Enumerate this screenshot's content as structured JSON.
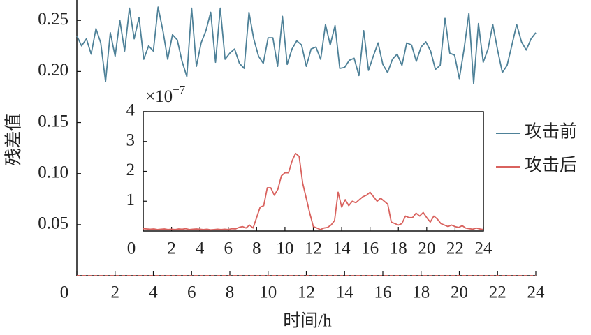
{
  "chart_data": [
    {
      "type": "line",
      "ylabel": "残差值",
      "xlabel": "时间/h",
      "legend": "right",
      "xlim": [
        0,
        24
      ],
      "ylim": [
        0,
        0.27
      ],
      "xticks": [
        0,
        2,
        4,
        6,
        8,
        10,
        12,
        14,
        16,
        18,
        20,
        22,
        24
      ],
      "yticks": [
        {
          "value": 0.05,
          "label": "0.05"
        },
        {
          "value": 0.1,
          "label": "0.10"
        },
        {
          "value": 0.15,
          "label": "0.15"
        },
        {
          "value": 0.2,
          "label": "0.20"
        },
        {
          "value": 0.25,
          "label": "0.25"
        }
      ],
      "series": [
        {
          "name": "攻击前",
          "color": "#4e8198",
          "x": [
            0,
            0.25,
            0.5,
            0.75,
            1,
            1.25,
            1.5,
            1.75,
            2,
            2.25,
            2.5,
            2.75,
            3,
            3.25,
            3.5,
            3.75,
            4,
            4.25,
            4.5,
            4.75,
            5,
            5.25,
            5.5,
            5.75,
            6,
            6.25,
            6.5,
            6.75,
            7,
            7.25,
            7.5,
            7.75,
            8,
            8.25,
            8.5,
            8.75,
            9,
            9.25,
            9.5,
            9.75,
            10,
            10.25,
            10.5,
            10.75,
            11,
            11.25,
            11.5,
            11.75,
            12,
            12.25,
            12.5,
            12.75,
            13,
            13.25,
            13.5,
            13.75,
            14,
            14.25,
            14.5,
            14.75,
            15,
            15.25,
            15.5,
            15.75,
            16,
            16.25,
            16.5,
            16.75,
            17,
            17.25,
            17.5,
            17.75,
            18,
            18.25,
            18.5,
            18.75,
            19,
            19.25,
            19.5,
            19.75,
            20,
            20.25,
            20.5,
            20.75,
            21,
            21.25,
            21.5,
            21.75,
            22,
            22.25,
            22.5,
            22.75,
            23,
            23.25,
            23.5,
            23.75,
            24
          ],
          "values": [
            0.235,
            0.225,
            0.232,
            0.217,
            0.242,
            0.228,
            0.19,
            0.238,
            0.215,
            0.25,
            0.22,
            0.262,
            0.232,
            0.253,
            0.212,
            0.225,
            0.22,
            0.263,
            0.24,
            0.212,
            0.236,
            0.231,
            0.21,
            0.195,
            0.262,
            0.205,
            0.228,
            0.24,
            0.258,
            0.209,
            0.262,
            0.212,
            0.218,
            0.222,
            0.208,
            0.203,
            0.258,
            0.232,
            0.215,
            0.208,
            0.233,
            0.233,
            0.205,
            0.254,
            0.207,
            0.222,
            0.23,
            0.226,
            0.205,
            0.222,
            0.224,
            0.212,
            0.246,
            0.226,
            0.245,
            0.203,
            0.204,
            0.211,
            0.213,
            0.196,
            0.24,
            0.201,
            0.215,
            0.228,
            0.207,
            0.199,
            0.212,
            0.217,
            0.206,
            0.228,
            0.226,
            0.21,
            0.224,
            0.229,
            0.22,
            0.202,
            0.206,
            0.252,
            0.218,
            0.216,
            0.193,
            0.222,
            0.257,
            0.188,
            0.247,
            0.209,
            0.222,
            0.246,
            0.221,
            0.199,
            0.206,
            0.226,
            0.246,
            0.229,
            0.221,
            0.232,
            0.238
          ]
        },
        {
          "name": "攻击后",
          "color": "#d9625e",
          "dashed": true,
          "x": [
            0,
            24
          ],
          "values": [
            0,
            0
          ]
        }
      ]
    },
    {
      "type": "line",
      "inset": true,
      "multiplier": {
        "base": "×10",
        "exponent": "−7"
      },
      "xlim": [
        0,
        24
      ],
      "ylim": [
        0,
        4
      ],
      "xticks": [
        0,
        2,
        4,
        6,
        8,
        10,
        12,
        14,
        16,
        18,
        20,
        22,
        24
      ],
      "yticks": [
        1,
        2,
        3,
        4
      ],
      "series": [
        {
          "color": "#d9625e",
          "x": [
            0,
            0.25,
            0.5,
            0.75,
            1,
            1.25,
            1.5,
            1.75,
            2,
            2.25,
            2.5,
            2.75,
            3,
            3.25,
            3.5,
            3.75,
            4,
            4.25,
            4.5,
            4.75,
            5,
            5.25,
            5.5,
            5.75,
            6,
            6.25,
            6.5,
            6.75,
            7,
            7.25,
            7.5,
            7.75,
            8,
            8.25,
            8.5,
            8.75,
            9,
            9.25,
            9.5,
            9.75,
            10,
            10.25,
            10.5,
            10.75,
            11,
            11.25,
            11.5,
            11.75,
            12,
            12.25,
            12.5,
            12.75,
            13,
            13.25,
            13.5,
            13.75,
            14,
            14.25,
            14.5,
            14.75,
            15,
            15.25,
            15.5,
            15.75,
            16,
            16.25,
            16.5,
            16.75,
            17,
            17.25,
            17.5,
            17.75,
            18,
            18.25,
            18.5,
            18.75,
            19,
            19.25,
            19.5,
            19.75,
            20,
            20.25,
            20.5,
            20.75,
            21,
            21.25,
            21.5,
            21.75,
            22,
            22.25,
            22.5,
            22.75,
            23,
            23.25,
            23.5,
            23.75,
            24
          ],
          "values": [
            0.08,
            0.07,
            0.06,
            0.07,
            0.05,
            0.06,
            0.07,
            0.05,
            0.06,
            0.05,
            0.07,
            0.06,
            0.08,
            0.05,
            0.06,
            0.07,
            0.06,
            0.05,
            0.06,
            0.04,
            0.05,
            0.06,
            0.05,
            0.06,
            0.05,
            0.08,
            0.07,
            0.12,
            0.15,
            0.1,
            0.2,
            0.1,
            0.45,
            0.8,
            0.85,
            1.45,
            1.45,
            1.2,
            1.4,
            1.85,
            1.95,
            1.95,
            2.35,
            2.6,
            2.5,
            1.6,
            1.1,
            0.6,
            0.15,
            0.1,
            0.05,
            0.1,
            0.12,
            0.2,
            0.35,
            1.3,
            0.8,
            1.05,
            0.85,
            1.0,
            0.95,
            1.05,
            1.15,
            1.2,
            1.3,
            1.15,
            1.0,
            1.1,
            1.0,
            0.9,
            0.3,
            0.25,
            0.2,
            0.25,
            0.5,
            0.45,
            0.45,
            0.6,
            0.5,
            0.62,
            0.45,
            0.3,
            0.5,
            0.4,
            0.25,
            0.2,
            0.15,
            0.2,
            0.15,
            0.12,
            0.18,
            0.1,
            0.08,
            0.06,
            0.1,
            0.07,
            0.05
          ]
        }
      ]
    }
  ]
}
